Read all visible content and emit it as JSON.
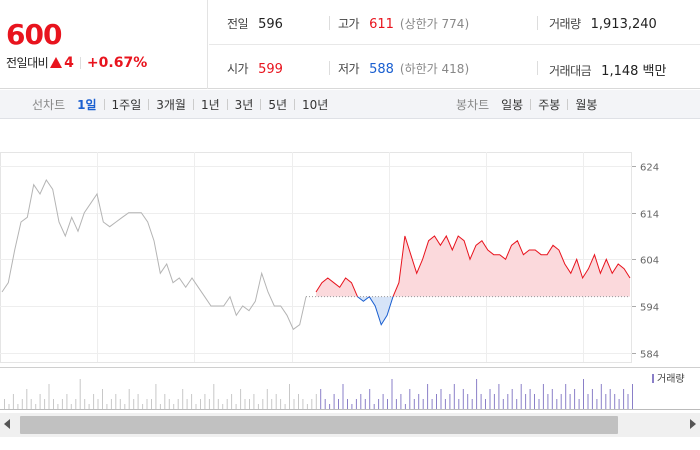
{
  "summary": {
    "price": "600",
    "change_label": "전일대비",
    "change_value": "4",
    "change_rate": "+0.67%",
    "prev_close_label": "전일",
    "prev_close": "596",
    "open_label": "시가",
    "open": "599",
    "high_label": "고가",
    "high": "611",
    "upper_limit": "(상한가 774)",
    "low_label": "저가",
    "low": "588",
    "lower_limit": "(하한가 418)",
    "volume_label": "거래량",
    "volume": "1,913,240",
    "amount_label": "거래대금",
    "amount": "1,148 백만"
  },
  "line_tabs": {
    "title": "선차트",
    "items": [
      "1일",
      "1주일",
      "3개월",
      "1년",
      "3년",
      "5년",
      "10년"
    ],
    "active": 0
  },
  "candle_tabs": {
    "title": "봉차트",
    "items": [
      "일봉",
      "주봉",
      "월봉"
    ]
  },
  "colors": {
    "up": "#e8141e",
    "down": "#1a5fd0",
    "prev_day": "#b4b4b4"
  },
  "chart_data": {
    "type": "line",
    "y_ticks": [
      624,
      614,
      604,
      594,
      584
    ],
    "ylim": [
      582,
      627
    ],
    "baseline": 596,
    "grid": true,
    "prev_day_series": [
      597,
      599,
      606,
      612,
      613,
      620,
      618,
      621,
      619,
      612,
      609,
      613,
      610,
      614,
      616,
      618,
      612,
      611,
      612,
      613,
      614,
      614,
      614,
      612,
      608,
      601,
      603,
      599,
      600,
      598,
      600,
      598,
      596,
      594,
      594,
      594,
      596,
      592,
      594,
      593,
      595,
      601,
      597,
      594,
      594,
      592,
      589,
      590,
      596
    ],
    "today_series": [
      597,
      599,
      600,
      599,
      598,
      600,
      599,
      596,
      595,
      596,
      594,
      590,
      592,
      596,
      599,
      609,
      605,
      601,
      604,
      608,
      609,
      607,
      609,
      606,
      609,
      608,
      604,
      607,
      608,
      606,
      605,
      605,
      604,
      607,
      608,
      605,
      606,
      606,
      605,
      605,
      607,
      606,
      603,
      601,
      604,
      600,
      602,
      605,
      601,
      604,
      601,
      603,
      602,
      600
    ],
    "legend": [
      "거래량"
    ],
    "volume_bars": [
      2,
      1,
      3,
      1,
      2,
      4,
      2,
      1,
      3,
      2,
      5,
      2,
      1,
      2,
      3,
      1,
      2,
      6,
      2,
      1,
      3,
      2,
      4,
      1,
      2,
      3,
      2,
      1,
      4,
      2,
      3,
      1,
      2,
      2,
      5,
      1,
      3,
      2,
      1,
      2,
      4,
      2,
      3,
      1,
      2,
      3,
      2,
      5,
      2,
      1,
      2,
      3,
      1,
      4,
      2,
      2,
      3,
      1,
      2,
      4,
      2,
      3,
      2,
      1,
      5,
      2,
      3,
      2,
      1,
      2,
      3,
      4,
      2,
      1,
      3,
      2,
      5,
      2,
      1,
      2,
      3,
      2,
      4,
      1,
      2,
      3,
      2,
      6,
      2,
      3,
      1,
      4,
      2,
      3,
      2,
      5,
      2,
      3,
      4,
      2,
      3,
      5,
      2,
      4,
      3,
      2,
      6,
      3,
      2,
      4,
      3,
      5,
      2,
      3,
      4,
      2,
      5,
      3,
      4,
      3,
      2,
      5,
      3,
      4,
      2,
      3,
      5,
      3,
      4,
      2,
      6,
      3,
      4,
      2,
      5,
      3,
      4,
      3,
      2,
      4,
      3,
      5
    ]
  }
}
